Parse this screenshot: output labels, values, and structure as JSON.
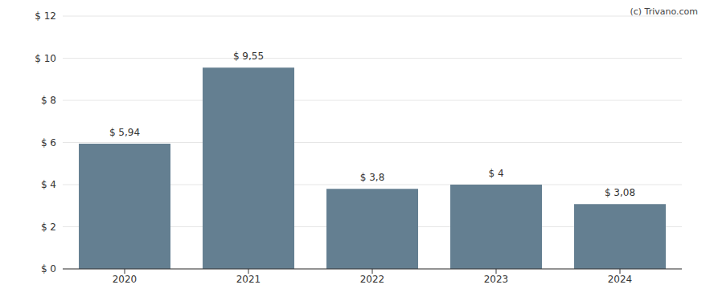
{
  "chart_data": {
    "type": "bar",
    "categories": [
      "2020",
      "2021",
      "2022",
      "2023",
      "2024"
    ],
    "values": [
      5.94,
      9.55,
      3.8,
      4,
      3.08
    ],
    "value_labels": [
      "$ 5,94",
      "$ 9,55",
      "$ 3,8",
      "$ 4",
      "$ 3,08"
    ],
    "data_labels": true,
    "color": "#647f91",
    "ylim": [
      0,
      12
    ],
    "yticks": [
      {
        "value": 0,
        "label": "$ 0"
      },
      {
        "value": 2,
        "label": "$ 2"
      },
      {
        "value": 4,
        "label": "$ 4"
      },
      {
        "value": 6,
        "label": "$ 6"
      },
      {
        "value": 8,
        "label": "$ 8"
      },
      {
        "value": 10,
        "label": "$ 10"
      },
      {
        "value": 12,
        "label": "$ 12"
      }
    ],
    "grid": true,
    "annotations": [
      "(c) Trivano.com"
    ]
  }
}
